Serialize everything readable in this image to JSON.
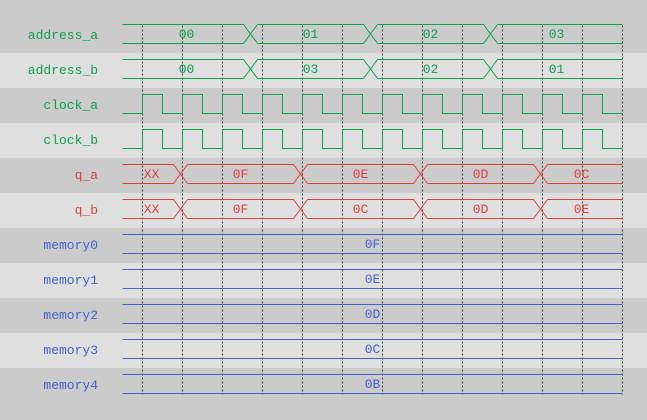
{
  "colors": {
    "background": "#cbcbcb",
    "row_stripe_dark": "#cbcbcb",
    "row_stripe_light": "#dfdfdf",
    "grid": "#3c3c3c",
    "green": "#0da24f",
    "red": "#e03e3e",
    "blue": "#4660cc"
  },
  "chart_data": {
    "type": "timing-waveform",
    "time_axis": {
      "start": 0,
      "end": 500,
      "grid_first": 20,
      "grid_interval": 40,
      "gridline_count": 13
    },
    "signals": [
      {
        "name": "address_a",
        "color": "green",
        "kind": "bus",
        "values": [
          "00",
          "01",
          "02",
          "03"
        ],
        "transition_times": [
          128,
          248,
          368
        ]
      },
      {
        "name": "address_b",
        "color": "green",
        "kind": "bus",
        "values": [
          "00",
          "03",
          "02",
          "01"
        ],
        "transition_times": [
          128,
          248,
          368
        ]
      },
      {
        "name": "clock_a",
        "color": "green",
        "kind": "clock",
        "initial_level": "low",
        "first_edge": 20,
        "half_period": 20
      },
      {
        "name": "clock_b",
        "color": "green",
        "kind": "clock",
        "initial_level": "low",
        "first_edge": 20,
        "half_period": 20
      },
      {
        "name": "q_a",
        "color": "red",
        "kind": "bus",
        "values": [
          "XX",
          "0F",
          "0E",
          "0D",
          "0C"
        ],
        "transition_times": [
          58,
          178,
          298,
          418
        ]
      },
      {
        "name": "q_b",
        "color": "red",
        "kind": "bus",
        "values": [
          "XX",
          "0F",
          "0C",
          "0D",
          "0E"
        ],
        "transition_times": [
          58,
          178,
          298,
          418
        ]
      },
      {
        "name": "memory0",
        "color": "blue",
        "kind": "bus",
        "values": [
          "0F"
        ],
        "transition_times": []
      },
      {
        "name": "memory1",
        "color": "blue",
        "kind": "bus",
        "values": [
          "0E"
        ],
        "transition_times": []
      },
      {
        "name": "memory2",
        "color": "blue",
        "kind": "bus",
        "values": [
          "0D"
        ],
        "transition_times": []
      },
      {
        "name": "memory3",
        "color": "blue",
        "kind": "bus",
        "values": [
          "0C"
        ],
        "transition_times": []
      },
      {
        "name": "memory4",
        "color": "blue",
        "kind": "bus",
        "values": [
          "0B"
        ],
        "transition_times": []
      }
    ]
  }
}
